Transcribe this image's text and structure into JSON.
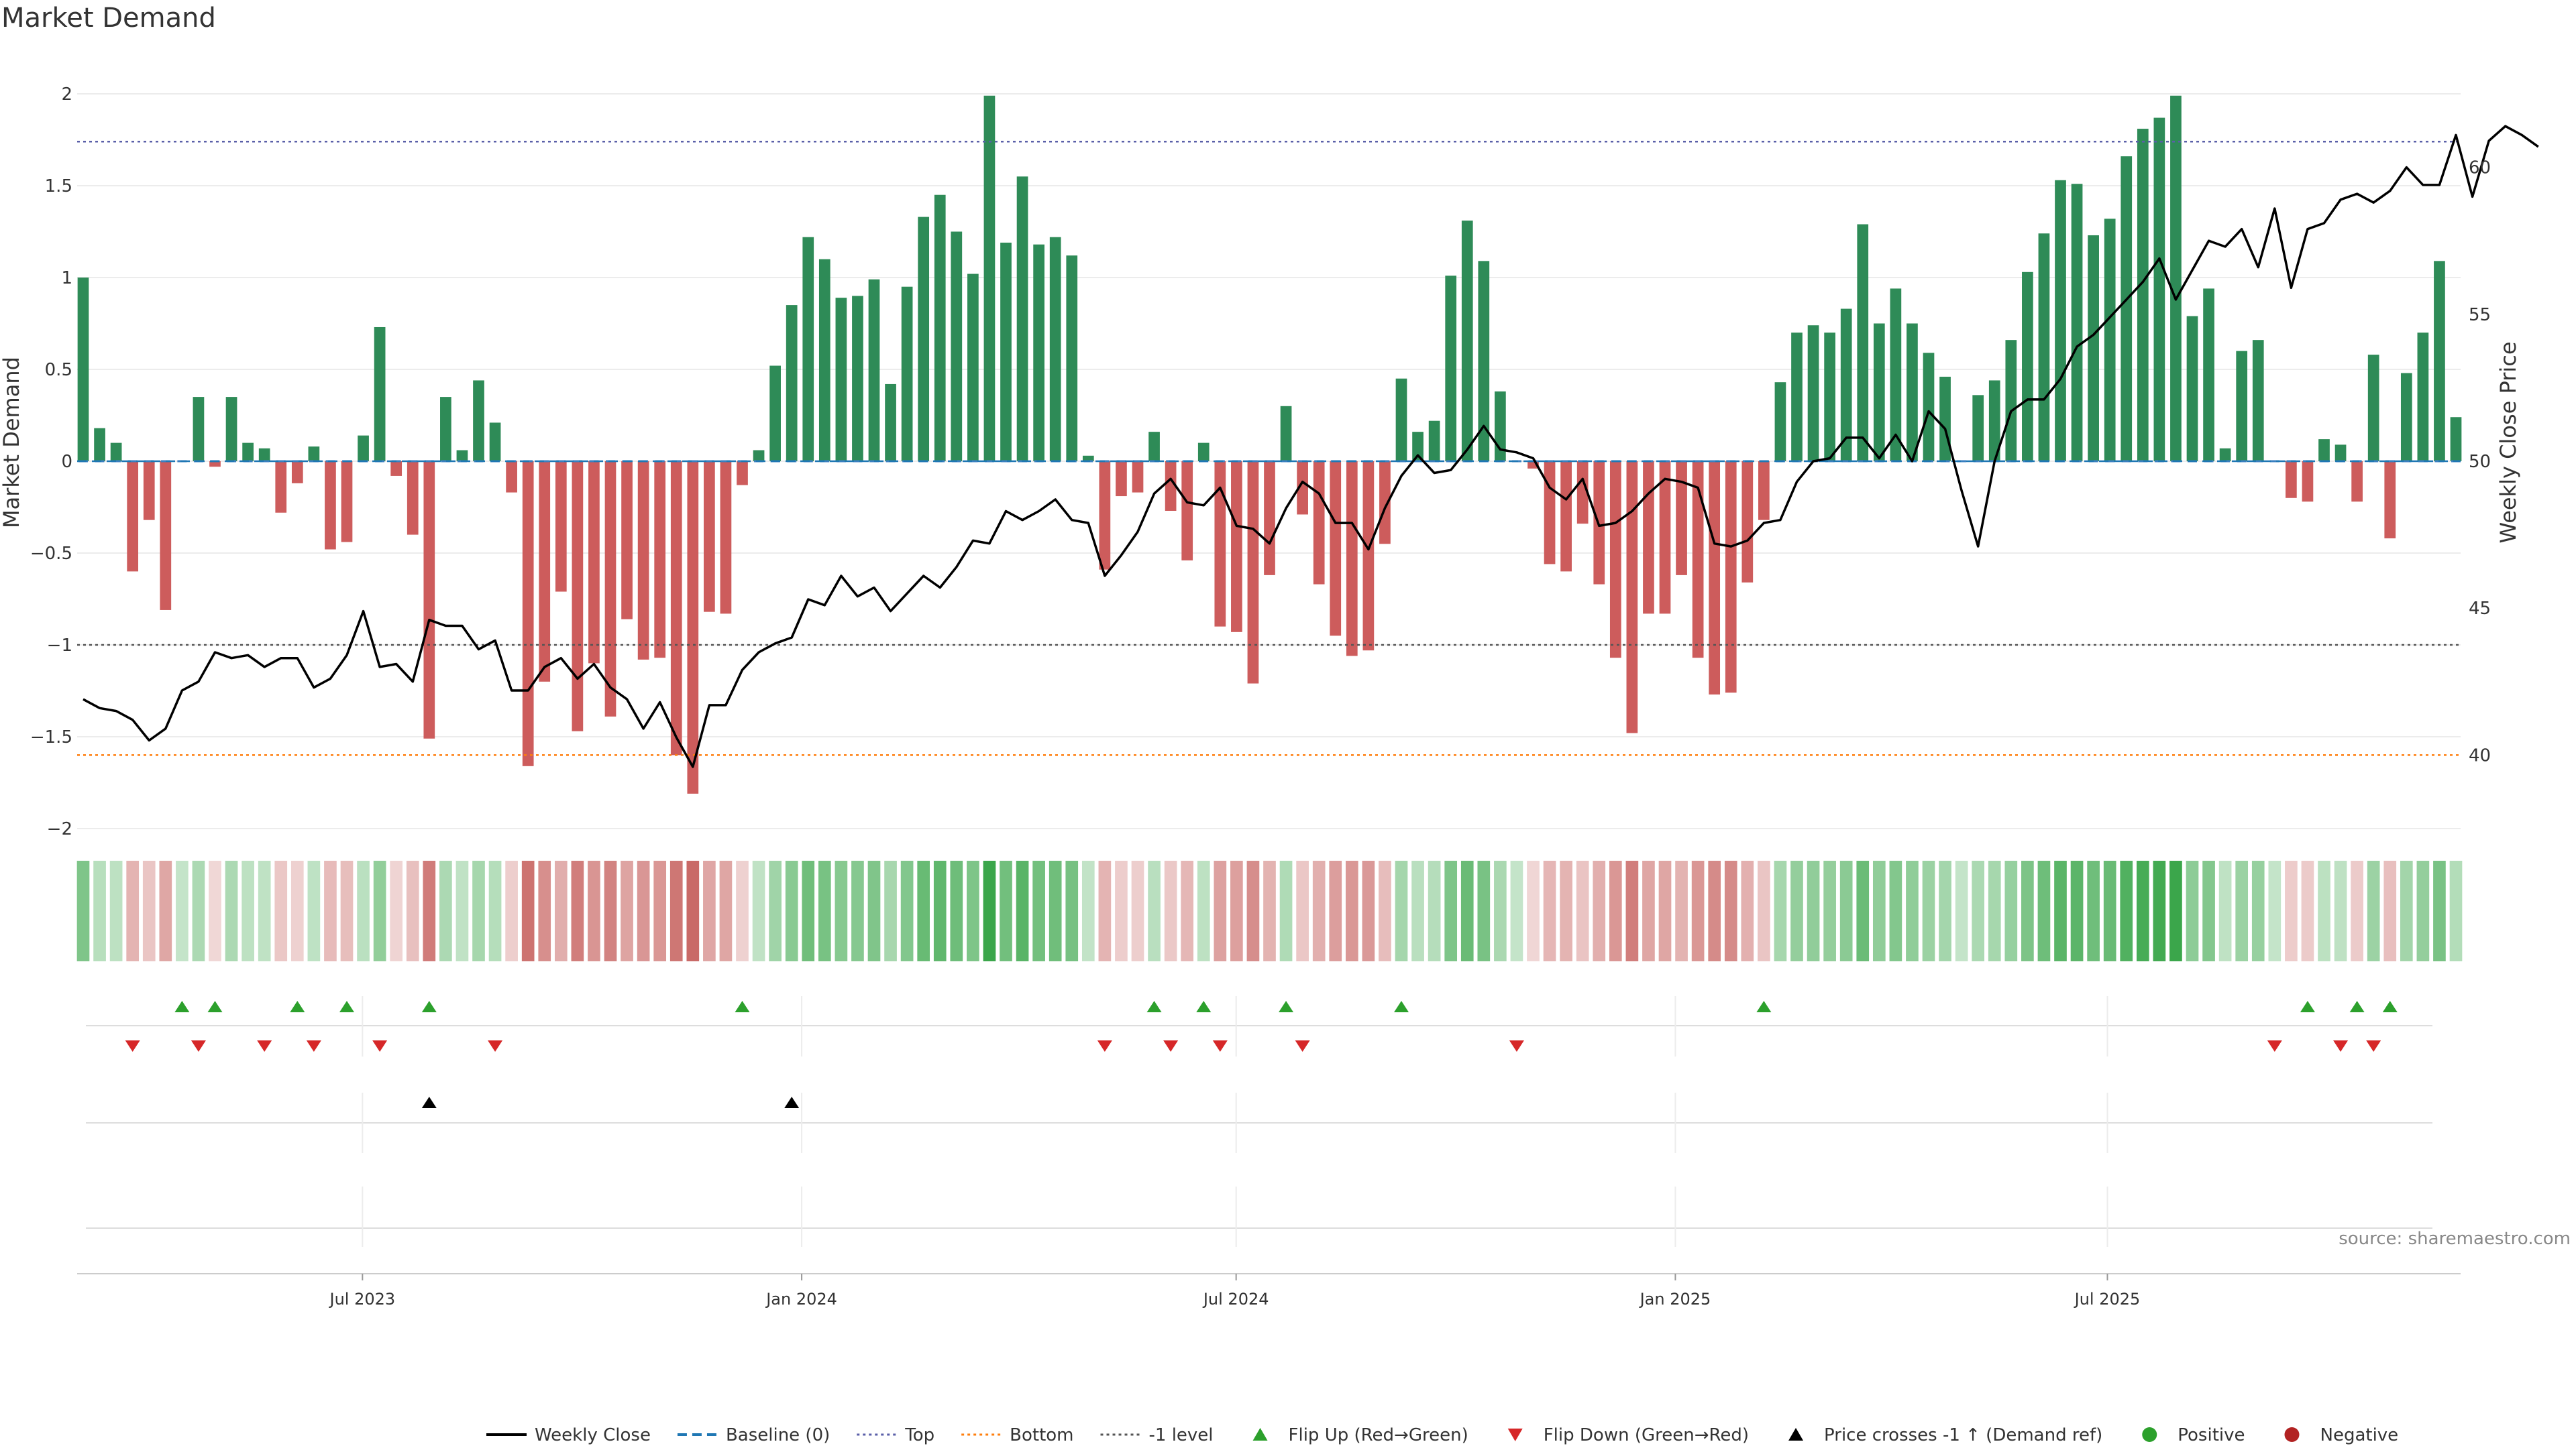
{
  "chart_data": {
    "type": "bar",
    "title": "Market Demand",
    "ylabel_left": "Market Demand",
    "ylabel_right": "Weekly Close Price",
    "ylim_left": [
      -2,
      2
    ],
    "ylim_right": [
      37.5,
      62.5
    ],
    "yticks_left": [
      2,
      1.5,
      1,
      0.5,
      0,
      -0.5,
      -1,
      -1.5,
      -2
    ],
    "yticks_left_labels": [
      "2",
      "1.5",
      "1",
      "0.5",
      "0",
      "−0.5",
      "−1",
      "−1.5",
      "−2"
    ],
    "yticks_right": [
      60,
      55,
      50,
      45,
      40
    ],
    "x_start": "2023-03-06",
    "x_end": "2025-11-24",
    "xticks": [
      {
        "date": "2023-07-01",
        "label": "Jul 2023"
      },
      {
        "date": "2024-01-01",
        "label": "Jan 2024"
      },
      {
        "date": "2024-07-01",
        "label": "Jul 2024"
      },
      {
        "date": "2025-01-01",
        "label": "Jan 2025"
      },
      {
        "date": "2025-07-01",
        "label": "Jul 2025"
      }
    ],
    "reference_lines": [
      {
        "name": "Baseline (0)",
        "value": 0,
        "color": "#1f77b4",
        "style": "dashed"
      },
      {
        "name": "Top",
        "value": 1.74,
        "color": "#5a5fa8",
        "style": "dotted"
      },
      {
        "name": "Bottom",
        "value": -1.6,
        "color": "#ff7f0e",
        "style": "dotted"
      },
      {
        "name": "-1 level",
        "value": -1,
        "color": "#555555",
        "style": "dotted"
      }
    ],
    "demand_values": [
      1.0,
      0.18,
      0.1,
      -0.6,
      -0.32,
      -0.81,
      0.0,
      0.35,
      -0.03,
      0.35,
      0.1,
      0.07,
      -0.28,
      -0.12,
      0.08,
      -0.48,
      -0.44,
      0.14,
      0.73,
      -0.08,
      -0.4,
      -1.51,
      0.35,
      0.06,
      0.44,
      0.21,
      -0.17,
      -1.66,
      -1.2,
      -0.71,
      -1.47,
      -1.1,
      -1.39,
      -0.86,
      -1.08,
      -1.07,
      -1.6,
      -1.81,
      -0.82,
      -0.83,
      -0.13,
      0.06,
      0.52,
      0.85,
      1.22,
      1.1,
      0.89,
      0.9,
      0.99,
      0.42,
      0.95,
      1.33,
      1.45,
      1.25,
      1.02,
      1.99,
      1.19,
      1.55,
      1.18,
      1.22,
      1.12,
      0.03,
      -0.59,
      -0.19,
      -0.17,
      0.16,
      -0.27,
      -0.54,
      0.1,
      -0.9,
      -0.93,
      -1.21,
      -0.62,
      0.3,
      -0.29,
      -0.67,
      -0.95,
      -1.06,
      -1.03,
      -0.45,
      0.45,
      0.16,
      0.22,
      1.01,
      1.31,
      1.09,
      0.38,
      0.0,
      -0.04,
      -0.56,
      -0.6,
      -0.34,
      -0.67,
      -1.07,
      -1.48,
      -0.83,
      -0.83,
      -0.62,
      -1.07,
      -1.27,
      -1.26,
      -0.66,
      -0.32,
      0.43,
      0.7,
      0.74,
      0.7,
      0.83,
      1.29,
      0.75,
      0.94,
      0.75,
      0.59,
      0.46,
      0.0,
      0.36,
      0.44,
      0.66,
      1.03,
      1.24,
      1.53,
      1.51,
      1.23,
      1.32,
      1.66,
      1.81,
      1.87,
      1.99,
      0.79,
      0.94,
      0.07,
      0.6,
      0.66,
      0.0,
      -0.2,
      -0.22,
      0.12,
      0.09,
      -0.22,
      0.58,
      -0.42,
      0.48,
      0.7,
      1.09,
      0.24
    ],
    "weekly_close": [
      41.9,
      41.6,
      41.5,
      41.2,
      40.5,
      40.9,
      42.2,
      42.5,
      43.5,
      43.3,
      43.4,
      43.0,
      43.3,
      43.3,
      42.3,
      42.6,
      43.4,
      44.9,
      43.0,
      43.1,
      42.5,
      44.6,
      44.4,
      44.4,
      43.6,
      43.9,
      42.2,
      42.2,
      43.0,
      43.3,
      42.6,
      43.1,
      42.3,
      41.9,
      40.9,
      41.8,
      40.6,
      39.6,
      41.7,
      41.7,
      42.9,
      43.5,
      43.8,
      44.0,
      45.3,
      45.1,
      46.1,
      45.4,
      45.7,
      44.9,
      45.5,
      46.1,
      45.7,
      46.4,
      47.3,
      47.2,
      48.3,
      48.0,
      48.3,
      48.7,
      48.0,
      47.9,
      46.1,
      46.8,
      47.6,
      48.9,
      49.4,
      48.6,
      48.5,
      49.1,
      47.8,
      47.7,
      47.2,
      48.4,
      49.3,
      48.9,
      47.9,
      47.9,
      47.0,
      48.4,
      49.5,
      50.2,
      49.6,
      49.7,
      50.4,
      51.2,
      50.4,
      50.3,
      50.1,
      49.1,
      48.7,
      49.4,
      47.8,
      47.9,
      48.3,
      48.9,
      49.4,
      49.3,
      49.1,
      47.2,
      47.1,
      47.3,
      47.9,
      48.0,
      49.3,
      50.0,
      50.1,
      50.8,
      50.8,
      50.1,
      50.9,
      50.0,
      51.7,
      51.1,
      49.0,
      47.1,
      50.0,
      51.7,
      52.1,
      52.1,
      52.8,
      53.9,
      54.3,
      54.9,
      55.5,
      56.1,
      56.9,
      55.5,
      56.5,
      57.5,
      57.3,
      57.9,
      56.6,
      58.6,
      55.9,
      57.9,
      58.1,
      58.9,
      59.1,
      58.8,
      59.2,
      60.0,
      59.4,
      59.4,
      61.1,
      59.0,
      60.9,
      61.4,
      61.1,
      60.7
    ],
    "flip_up_indices": [
      6,
      8,
      13,
      16,
      21,
      40,
      65,
      68,
      73,
      80,
      102,
      135,
      138,
      140
    ],
    "flip_down_indices": [
      3,
      7,
      11,
      14,
      18,
      25,
      62,
      66,
      69,
      74,
      87,
      133,
      137,
      139
    ],
    "price_cross_indices": [
      21,
      43
    ],
    "legend": [
      {
        "label": "Weekly Close",
        "symbol": "line",
        "color": "#000000"
      },
      {
        "label": "Baseline (0)",
        "symbol": "dash",
        "color": "#1f77b4"
      },
      {
        "label": "Top",
        "symbol": "dot",
        "color": "#5a5fa8"
      },
      {
        "label": "Bottom",
        "symbol": "dot",
        "color": "#ff7f0e"
      },
      {
        "label": "-1 level",
        "symbol": "dot",
        "color": "#555555"
      },
      {
        "label": "Flip Up (Red→Green)",
        "symbol": "tri-up",
        "color": "#2ca02c"
      },
      {
        "label": "Flip Down (Green→Red)",
        "symbol": "tri-down",
        "color": "#d62728"
      },
      {
        "label": "Price crosses -1 ↑ (Demand ref)",
        "symbol": "tri-up",
        "color": "#000000"
      },
      {
        "label": "Positive",
        "symbol": "circle",
        "color": "#2ca02c"
      },
      {
        "label": "Negative",
        "symbol": "circle",
        "color": "#b22222"
      }
    ],
    "colors": {
      "positive_bar": "#2e8b57",
      "negative_bar": "#cd5c5c",
      "heat_positive": "#3aa64a",
      "heat_negative": "#c0504d",
      "price_line": "#000000",
      "flip_up": "#2ca02c",
      "flip_down": "#d62728",
      "grid": "#e6e6e6"
    },
    "source": "source: sharemaestro.com"
  }
}
